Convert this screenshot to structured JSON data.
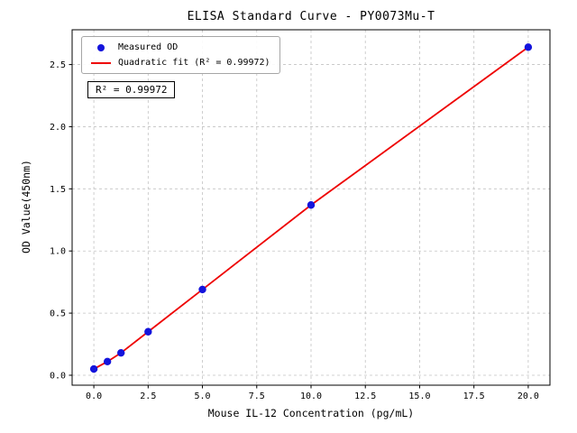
{
  "chart_data": {
    "type": "scatter",
    "title": "ELISA Standard Curve - PY0073Mu-T",
    "xlabel": "Mouse IL-12 Concentration (pg/mL)",
    "ylabel": "OD Value(450nm)",
    "xlim": [
      -1,
      21
    ],
    "ylim": [
      -0.08,
      2.78
    ],
    "x_ticks": [
      0.0,
      2.5,
      5.0,
      7.5,
      10.0,
      12.5,
      15.0,
      17.5,
      20.0
    ],
    "y_ticks": [
      0.0,
      0.5,
      1.0,
      1.5,
      2.0,
      2.5
    ],
    "grid": true,
    "series": [
      {
        "name": "Measured OD",
        "type": "scatter",
        "marker": "circle",
        "color": "#1414dc",
        "x": [
          0,
          0.625,
          1.25,
          2.5,
          5,
          10,
          20
        ],
        "y": [
          0.05,
          0.11,
          0.18,
          0.35,
          0.69,
          1.37,
          2.64
        ]
      },
      {
        "name": "Quadratic fit (R² = 0.99972)",
        "type": "line",
        "color": "#ee0000",
        "x": [
          0,
          0.625,
          1.25,
          2.5,
          5,
          10,
          20
        ],
        "y": [
          0.05,
          0.11,
          0.18,
          0.35,
          0.69,
          1.37,
          2.64
        ]
      }
    ],
    "legend": {
      "position": "upper-left",
      "entries": [
        "Measured OD",
        "Quadratic fit (R² = 0.99972)"
      ]
    },
    "annotation": "R² = 0.99972",
    "r_squared": 0.99972
  }
}
